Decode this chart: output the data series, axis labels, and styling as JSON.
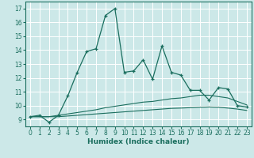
{
  "title": "",
  "xlabel": "Humidex (Indice chaleur)",
  "bg_color": "#cce8e8",
  "line_color": "#1a6e5e",
  "grid_color": "#ffffff",
  "xlim": [
    -0.5,
    23.5
  ],
  "ylim": [
    8.5,
    17.5
  ],
  "yticks": [
    9,
    10,
    11,
    12,
    13,
    14,
    15,
    16,
    17
  ],
  "xticks": [
    0,
    1,
    2,
    3,
    4,
    5,
    6,
    7,
    8,
    9,
    10,
    11,
    12,
    13,
    14,
    15,
    16,
    17,
    18,
    19,
    20,
    21,
    22,
    23
  ],
  "series1_x": [
    0,
    1,
    2,
    3,
    4,
    5,
    6,
    7,
    8,
    9,
    10,
    11,
    12,
    13,
    14,
    15,
    16,
    17,
    18,
    19,
    20,
    21,
    22,
    23
  ],
  "series1_y": [
    9.2,
    9.3,
    8.8,
    9.3,
    10.7,
    12.4,
    13.9,
    14.1,
    16.5,
    17.0,
    12.4,
    12.5,
    13.3,
    11.9,
    14.3,
    12.4,
    12.2,
    11.1,
    11.1,
    10.4,
    11.3,
    11.2,
    10.0,
    9.9
  ],
  "series2_x": [
    0,
    1,
    2,
    3,
    4,
    5,
    6,
    7,
    8,
    9,
    10,
    11,
    12,
    13,
    14,
    15,
    16,
    17,
    18,
    19,
    20,
    21,
    22,
    23
  ],
  "series2_y": [
    9.2,
    9.2,
    9.2,
    9.3,
    9.4,
    9.5,
    9.6,
    9.7,
    9.85,
    9.95,
    10.05,
    10.15,
    10.25,
    10.3,
    10.4,
    10.5,
    10.55,
    10.65,
    10.75,
    10.75,
    10.65,
    10.55,
    10.3,
    10.05
  ],
  "series3_x": [
    0,
    1,
    2,
    3,
    4,
    5,
    6,
    7,
    8,
    9,
    10,
    11,
    12,
    13,
    14,
    15,
    16,
    17,
    18,
    19,
    20,
    21,
    22,
    23
  ],
  "series3_y": [
    9.2,
    9.2,
    9.2,
    9.2,
    9.25,
    9.3,
    9.35,
    9.4,
    9.45,
    9.5,
    9.55,
    9.6,
    9.65,
    9.7,
    9.75,
    9.8,
    9.82,
    9.85,
    9.88,
    9.9,
    9.88,
    9.82,
    9.75,
    9.65
  ]
}
